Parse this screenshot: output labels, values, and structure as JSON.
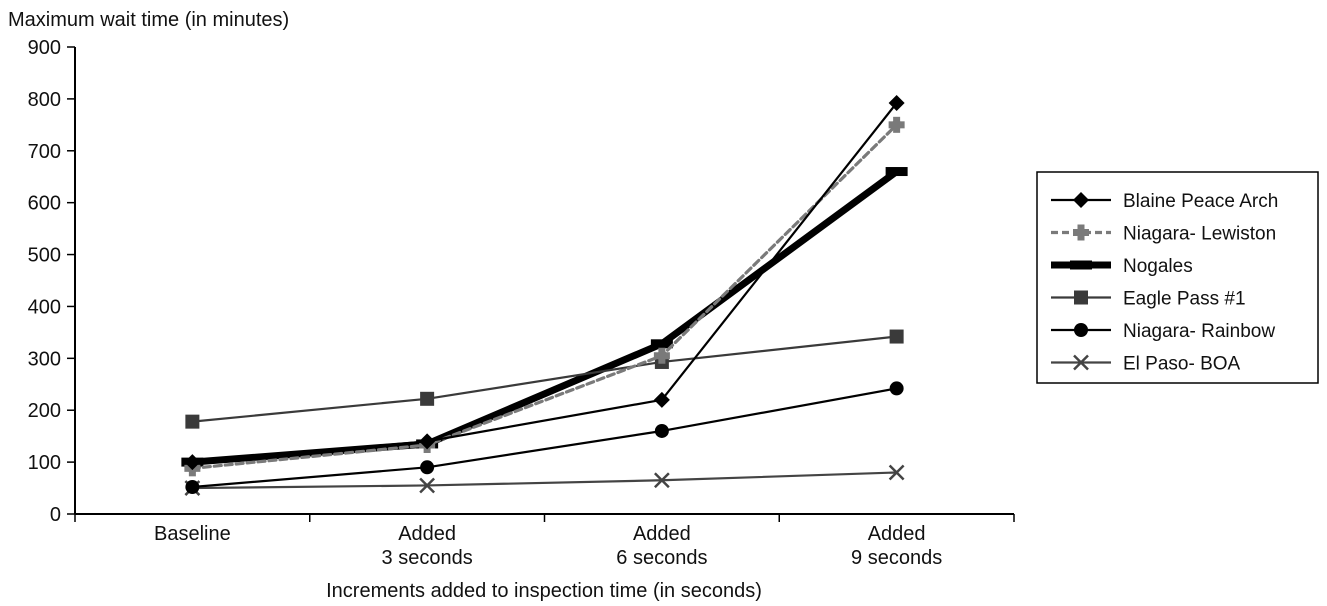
{
  "chart_data": {
    "type": "line",
    "title": "",
    "ylabel": "Maximum wait time (in minutes)",
    "xlabel": "Increments added to inspection time (in seconds)",
    "categories": [
      [
        "Baseline"
      ],
      [
        "Added",
        "3 seconds"
      ],
      [
        "Added",
        "6 seconds"
      ],
      [
        "Added",
        "9 seconds"
      ]
    ],
    "ylim": [
      0,
      900
    ],
    "yticks": [
      0,
      100,
      200,
      300,
      400,
      500,
      600,
      700,
      800,
      900
    ],
    "grid": false,
    "legend_position": "right",
    "series": [
      {
        "name": "Blaine Peace Arch",
        "values": [
          100,
          140,
          220,
          792
        ],
        "color": "#000000",
        "marker": "diamond",
        "dash": "solid",
        "weight": "thin"
      },
      {
        "name": "Niagara- Lewiston",
        "values": [
          88,
          133,
          305,
          750
        ],
        "color": "#7a7a7a",
        "marker": "cross",
        "dash": "dashed",
        "weight": "medium"
      },
      {
        "name": "Nogales",
        "values": [
          100,
          135,
          328,
          660
        ],
        "color": "#000000",
        "marker": "dash",
        "dash": "solid",
        "weight": "thick"
      },
      {
        "name": "Eagle Pass #1",
        "values": [
          178,
          222,
          293,
          342
        ],
        "color": "#3a3a3a",
        "marker": "square",
        "dash": "solid",
        "weight": "thin"
      },
      {
        "name": "Niagara- Rainbow",
        "values": [
          52,
          90,
          160,
          242
        ],
        "color": "#000000",
        "marker": "circle",
        "dash": "solid",
        "weight": "thin"
      },
      {
        "name": "El Paso- BOA",
        "values": [
          50,
          55,
          65,
          80
        ],
        "color": "#444444",
        "marker": "x",
        "dash": "solid",
        "weight": "thin"
      }
    ]
  }
}
